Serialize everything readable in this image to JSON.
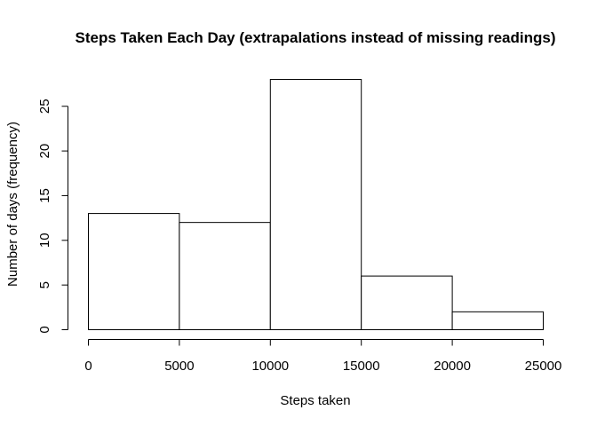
{
  "chart_data": {
    "type": "bar",
    "title": "Steps Taken Each Day (extrapalations instead of missing readings)",
    "xlabel": "Steps taken",
    "ylabel": "Number of days (frequency)",
    "bins": [
      {
        "from": 0,
        "to": 5000,
        "count": 13
      },
      {
        "from": 5000,
        "to": 10000,
        "count": 12
      },
      {
        "from": 10000,
        "to": 15000,
        "count": 28
      },
      {
        "from": 15000,
        "to": 20000,
        "count": 6
      },
      {
        "from": 20000,
        "to": 25000,
        "count": 2
      }
    ],
    "xlim": [
      0,
      25000
    ],
    "ylim": [
      0,
      28
    ],
    "x_ticks": [
      0,
      5000,
      10000,
      15000,
      20000,
      25000
    ],
    "y_ticks": [
      0,
      5,
      10,
      15,
      20,
      25
    ],
    "grid": false,
    "bar_fill": "#ffffff",
    "bar_stroke": "#000000"
  }
}
